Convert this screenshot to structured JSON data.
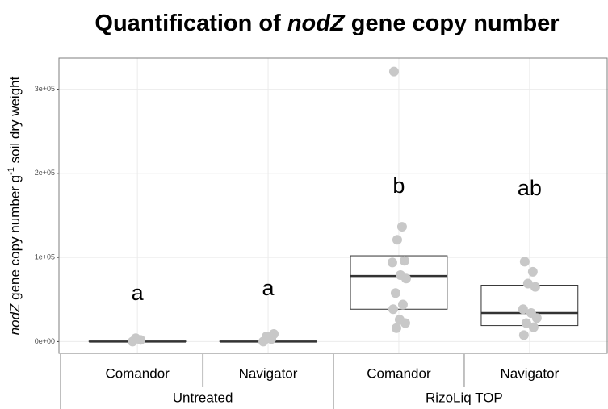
{
  "chart_data": {
    "type": "box",
    "title": [
      "Quantification of ",
      "nodZ",
      " gene copy number"
    ],
    "y_label": [
      "nodZ",
      " gene copy number g",
      "-1",
      " soil dry weight"
    ],
    "categories": [
      "Comandor",
      "Navigator",
      "Comandor",
      "Navigator"
    ],
    "groups": [
      "Untreated",
      "RizoLiq TOP"
    ],
    "q1": [
      0,
      0,
      38500,
      19000
    ],
    "median": [
      0,
      0,
      78000,
      34000
    ],
    "q3": [
      500,
      500,
      102000,
      67000
    ],
    "points": [
      [
        0,
        2000,
        4000
      ],
      [
        0,
        3000,
        6000,
        9000
      ],
      [
        321000,
        136500,
        121000,
        96000,
        94000,
        79000,
        75000,
        57700,
        44000,
        38500,
        26000,
        22000,
        16000
      ],
      [
        95000,
        83000,
        69000,
        65000,
        38500,
        34000,
        28000,
        22000,
        17000,
        7700
      ]
    ],
    "annotations": [
      "a",
      "a",
      "b",
      "ab"
    ],
    "point_color": "#c8c8c8",
    "box_color": "#333333",
    "ylim": [
      -14000,
      337000
    ],
    "yticks": [
      {
        "value": 0,
        "label": "0e+00"
      },
      {
        "value": 100000,
        "label": "1e+05"
      },
      {
        "value": 200000,
        "label": "2e+05"
      },
      {
        "value": 300000,
        "label": "3e+05"
      }
    ],
    "grid": true
  }
}
